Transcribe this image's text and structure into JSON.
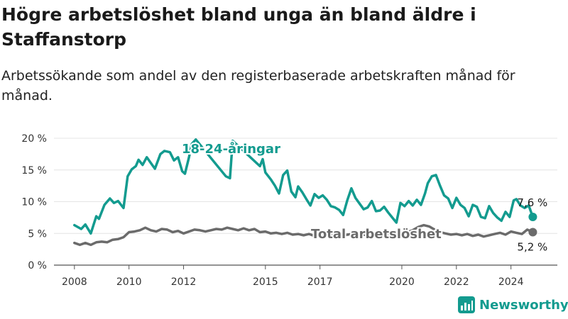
{
  "title": "Högre arbetslöshet bland unga än bland äldre i Staffanstorp",
  "subtitle": "Arbetssökande som andel av den registerbaserade arbetskraften månad för månad.",
  "brand": {
    "name": "Newsworthy",
    "logo_icon": "bar-chart-logo-icon"
  },
  "chart_data": {
    "type": "line",
    "title": "Högre arbetslöshet bland unga än bland äldre i Staffanstorp",
    "subtitle": "Arbetssökande som andel av den registerbaserade arbetskraften månad för månad.",
    "xlabel": "",
    "ylabel": "",
    "x_ticks": [
      "2008",
      "2010",
      "2012",
      "2015",
      "2017",
      "2020",
      "2022",
      "2024"
    ],
    "y_ticks": [
      "0 %",
      "5 %",
      "10 %",
      "15 %",
      "20 %"
    ],
    "ylim": [
      0,
      20
    ],
    "grid": "horizontal",
    "series": [
      {
        "name": "18-24-åringar",
        "color": "#139b8f",
        "end_label": "7,6 %",
        "points": [
          [
            2008.0,
            6.3
          ],
          [
            2008.25,
            5.7
          ],
          [
            2008.4,
            6.4
          ],
          [
            2008.6,
            5.0
          ],
          [
            2008.8,
            7.7
          ],
          [
            2008.9,
            7.3
          ],
          [
            2009.1,
            9.5
          ],
          [
            2009.3,
            10.5
          ],
          [
            2009.45,
            9.8
          ],
          [
            2009.6,
            10.1
          ],
          [
            2009.8,
            9.0
          ],
          [
            2009.95,
            14.0
          ],
          [
            2010.1,
            15.1
          ],
          [
            2010.25,
            15.6
          ],
          [
            2010.35,
            16.6
          ],
          [
            2010.5,
            15.8
          ],
          [
            2010.65,
            17.0
          ],
          [
            2010.8,
            16.1
          ],
          [
            2010.95,
            15.2
          ],
          [
            2011.15,
            17.5
          ],
          [
            2011.3,
            18.0
          ],
          [
            2011.5,
            17.8
          ],
          [
            2011.65,
            16.5
          ],
          [
            2011.8,
            17.0
          ],
          [
            2011.95,
            14.8
          ],
          [
            2012.05,
            14.4
          ],
          [
            2012.2,
            17.0
          ],
          [
            2012.3,
            19.1
          ],
          [
            2012.45,
            19.8
          ],
          [
            2013.55,
            14.0
          ],
          [
            2013.7,
            13.7
          ],
          [
            2013.8,
            19.6
          ],
          [
            2014.8,
            15.6
          ],
          [
            2014.9,
            16.7
          ],
          [
            2015.0,
            14.6
          ],
          [
            2015.2,
            13.5
          ],
          [
            2015.35,
            12.5
          ],
          [
            2015.5,
            11.3
          ],
          [
            2015.65,
            14.2
          ],
          [
            2015.8,
            14.9
          ],
          [
            2015.95,
            11.6
          ],
          [
            2016.1,
            10.7
          ],
          [
            2016.2,
            12.4
          ],
          [
            2016.35,
            11.5
          ],
          [
            2016.5,
            10.4
          ],
          [
            2016.65,
            9.4
          ],
          [
            2016.8,
            11.2
          ],
          [
            2016.95,
            10.6
          ],
          [
            2017.1,
            11.0
          ],
          [
            2017.25,
            10.3
          ],
          [
            2017.4,
            9.3
          ],
          [
            2017.55,
            9.1
          ],
          [
            2017.7,
            8.7
          ],
          [
            2017.85,
            7.9
          ],
          [
            2018.0,
            10.2
          ],
          [
            2018.15,
            12.1
          ],
          [
            2018.3,
            10.6
          ],
          [
            2018.45,
            9.7
          ],
          [
            2018.6,
            8.8
          ],
          [
            2018.75,
            9.1
          ],
          [
            2018.9,
            10.1
          ],
          [
            2019.05,
            8.5
          ],
          [
            2019.2,
            8.6
          ],
          [
            2019.35,
            9.2
          ],
          [
            2019.5,
            8.3
          ],
          [
            2019.65,
            7.5
          ],
          [
            2019.8,
            6.7
          ],
          [
            2019.95,
            9.8
          ],
          [
            2020.1,
            9.3
          ],
          [
            2020.25,
            10.1
          ],
          [
            2020.4,
            9.4
          ],
          [
            2020.55,
            10.3
          ],
          [
            2020.7,
            9.5
          ],
          [
            2020.85,
            11.3
          ],
          [
            2020.95,
            12.9
          ],
          [
            2021.1,
            14.0
          ],
          [
            2021.25,
            14.2
          ],
          [
            2021.4,
            12.5
          ],
          [
            2021.55,
            11.0
          ],
          [
            2021.7,
            10.5
          ],
          [
            2021.85,
            9.0
          ],
          [
            2022.0,
            10.6
          ],
          [
            2022.15,
            9.5
          ],
          [
            2022.3,
            9.0
          ],
          [
            2022.45,
            7.7
          ],
          [
            2022.6,
            9.5
          ],
          [
            2022.75,
            9.2
          ],
          [
            2022.9,
            7.6
          ],
          [
            2023.05,
            7.4
          ],
          [
            2023.2,
            9.3
          ],
          [
            2023.35,
            8.2
          ],
          [
            2023.5,
            7.5
          ],
          [
            2023.65,
            7.0
          ],
          [
            2023.8,
            8.4
          ],
          [
            2023.95,
            7.6
          ],
          [
            2024.1,
            10.2
          ],
          [
            2024.2,
            10.4
          ],
          [
            2024.35,
            9.4
          ],
          [
            2024.5,
            9.0
          ],
          [
            2024.65,
            9.4
          ],
          [
            2024.8,
            7.6
          ]
        ]
      },
      {
        "name": "Total arbetslöshet",
        "color": "#6b6b6b",
        "end_label": "5,2 %",
        "points": [
          [
            2008.0,
            3.5
          ],
          [
            2008.2,
            3.2
          ],
          [
            2008.4,
            3.5
          ],
          [
            2008.6,
            3.2
          ],
          [
            2008.8,
            3.6
          ],
          [
            2009.0,
            3.7
          ],
          [
            2009.2,
            3.6
          ],
          [
            2009.4,
            4.0
          ],
          [
            2009.6,
            4.1
          ],
          [
            2009.8,
            4.4
          ],
          [
            2010.0,
            5.2
          ],
          [
            2010.2,
            5.3
          ],
          [
            2010.4,
            5.5
          ],
          [
            2010.6,
            5.9
          ],
          [
            2010.8,
            5.5
          ],
          [
            2011.0,
            5.3
          ],
          [
            2011.2,
            5.7
          ],
          [
            2011.4,
            5.6
          ],
          [
            2011.6,
            5.2
          ],
          [
            2011.8,
            5.4
          ],
          [
            2012.0,
            5.0
          ],
          [
            2012.2,
            5.3
          ],
          [
            2012.4,
            5.6
          ],
          [
            2012.6,
            5.5
          ],
          [
            2012.8,
            5.3
          ],
          [
            2013.0,
            5.5
          ],
          [
            2013.2,
            5.7
          ],
          [
            2013.4,
            5.6
          ],
          [
            2013.6,
            5.9
          ],
          [
            2013.8,
            5.7
          ],
          [
            2014.0,
            5.5
          ],
          [
            2014.2,
            5.8
          ],
          [
            2014.4,
            5.5
          ],
          [
            2014.6,
            5.7
          ],
          [
            2014.8,
            5.2
          ],
          [
            2015.0,
            5.3
          ],
          [
            2015.2,
            5.0
          ],
          [
            2015.4,
            5.1
          ],
          [
            2015.6,
            4.9
          ],
          [
            2015.8,
            5.1
          ],
          [
            2016.0,
            4.8
          ],
          [
            2016.2,
            4.9
          ],
          [
            2016.4,
            4.7
          ],
          [
            2016.6,
            4.9
          ],
          [
            2016.8,
            4.6
          ],
          [
            2017.0,
            4.8
          ],
          [
            2017.2,
            4.9
          ],
          [
            2017.4,
            4.7
          ],
          [
            2017.6,
            4.8
          ],
          [
            2017.8,
            4.6
          ],
          [
            2018.0,
            4.8
          ],
          [
            2018.2,
            4.9
          ],
          [
            2018.4,
            4.6
          ],
          [
            2018.6,
            4.8
          ],
          [
            2018.8,
            4.7
          ],
          [
            2019.0,
            4.6
          ],
          [
            2019.2,
            4.8
          ],
          [
            2019.4,
            4.7
          ],
          [
            2019.6,
            4.6
          ],
          [
            2019.8,
            4.8
          ],
          [
            2020.0,
            4.9
          ],
          [
            2020.2,
            5.2
          ],
          [
            2020.4,
            5.5
          ],
          [
            2020.6,
            6.0
          ],
          [
            2020.8,
            6.3
          ],
          [
            2021.0,
            6.1
          ],
          [
            2021.2,
            5.6
          ],
          [
            2021.4,
            5.2
          ],
          [
            2021.6,
            5.0
          ],
          [
            2021.8,
            4.8
          ],
          [
            2022.0,
            4.9
          ],
          [
            2022.2,
            4.7
          ],
          [
            2022.4,
            4.9
          ],
          [
            2022.6,
            4.6
          ],
          [
            2022.8,
            4.8
          ],
          [
            2023.0,
            4.5
          ],
          [
            2023.2,
            4.7
          ],
          [
            2023.4,
            4.9
          ],
          [
            2023.6,
            5.1
          ],
          [
            2023.8,
            4.8
          ],
          [
            2024.0,
            5.3
          ],
          [
            2024.2,
            5.1
          ],
          [
            2024.4,
            4.9
          ],
          [
            2024.6,
            5.6
          ],
          [
            2024.8,
            5.2
          ]
        ]
      }
    ]
  }
}
